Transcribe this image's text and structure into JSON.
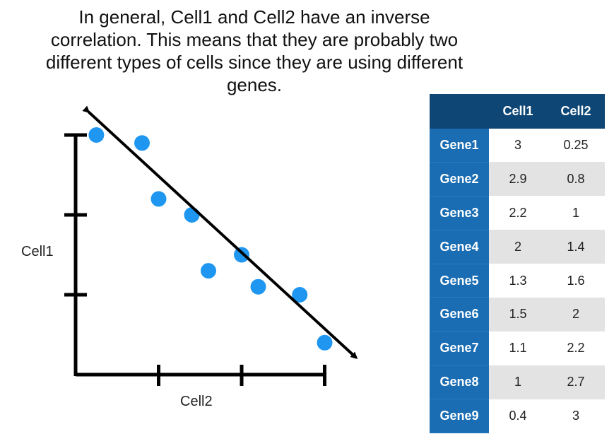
{
  "caption": "In general, Cell1 and Cell2 have an inverse correlation. This means that they are probably two different types of cells since they are using different genes.",
  "chart_data": {
    "type": "scatter",
    "xlabel": "Cell2",
    "ylabel": "Cell1",
    "xlim": [
      0,
      3.2
    ],
    "ylim": [
      0,
      3.1
    ],
    "x_ticks": [
      1,
      2,
      3
    ],
    "y_ticks": [
      1,
      2,
      3
    ],
    "points_color": "#1f97f0",
    "trend": "inverse correlation (decreasing line)",
    "points": [
      {
        "gene": "Gene1",
        "x": 0.25,
        "y": 3
      },
      {
        "gene": "Gene2",
        "x": 0.8,
        "y": 2.9
      },
      {
        "gene": "Gene3",
        "x": 1,
        "y": 2.2
      },
      {
        "gene": "Gene4",
        "x": 1.4,
        "y": 2
      },
      {
        "gene": "Gene5",
        "x": 1.6,
        "y": 1.3
      },
      {
        "gene": "Gene6",
        "x": 2,
        "y": 1.5
      },
      {
        "gene": "Gene7",
        "x": 2.2,
        "y": 1.1
      },
      {
        "gene": "Gene8",
        "x": 2.7,
        "y": 1
      },
      {
        "gene": "Gene9",
        "x": 3,
        "y": 0.4
      }
    ]
  },
  "table": {
    "headers": [
      "",
      "Cell1",
      "Cell2"
    ],
    "rows": [
      [
        "Gene1",
        "3",
        "0.25"
      ],
      [
        "Gene2",
        "2.9",
        "0.8"
      ],
      [
        "Gene3",
        "2.2",
        "1"
      ],
      [
        "Gene4",
        "2",
        "1.4"
      ],
      [
        "Gene5",
        "1.3",
        "1.6"
      ],
      [
        "Gene6",
        "1.5",
        "2"
      ],
      [
        "Gene7",
        "1.1",
        "2.2"
      ],
      [
        "Gene8",
        "1",
        "2.7"
      ],
      [
        "Gene9",
        "0.4",
        "3"
      ]
    ]
  }
}
